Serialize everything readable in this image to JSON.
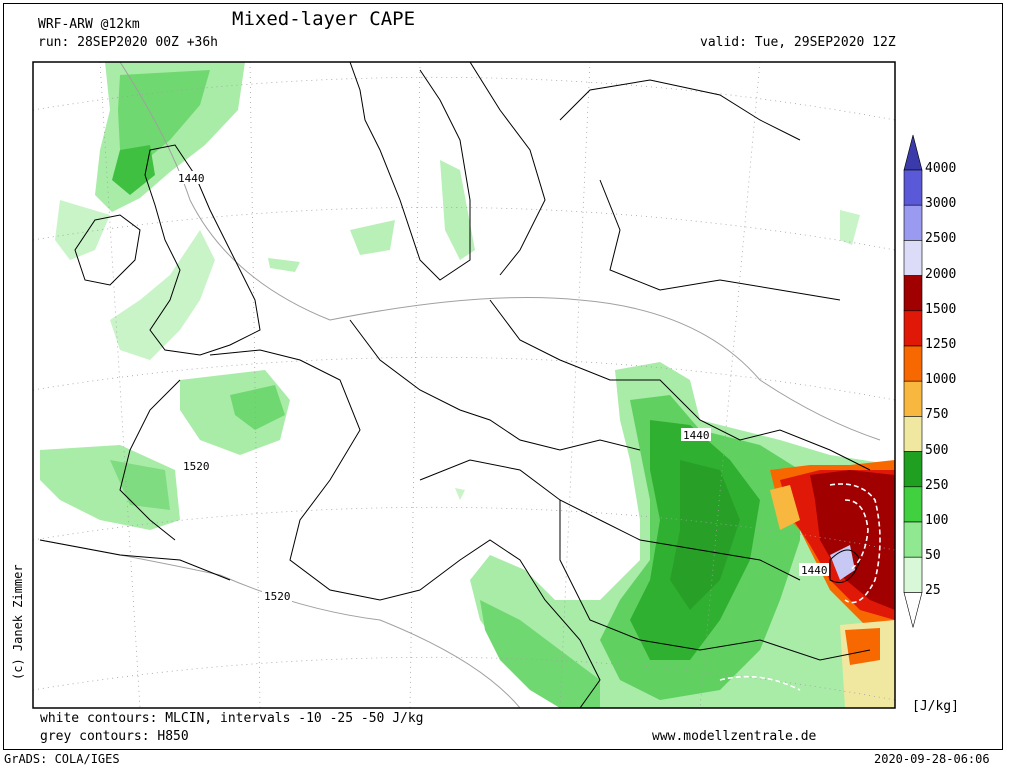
{
  "header": {
    "model": "WRF-ARW @12km",
    "title": "Mixed-layer CAPE",
    "run": "run: 28SEP2020 00Z +36h",
    "valid": "valid: Tue, 29SEP2020 12Z"
  },
  "map": {
    "contour_labels": [
      "1440",
      "1440",
      "1440",
      "1520",
      "1520"
    ],
    "credit": "(c) Janek Zimmer"
  },
  "legend": {
    "unit": "[J/kg]",
    "levels": [
      "4000",
      "3000",
      "2500",
      "2000",
      "1500",
      "1250",
      "1000",
      "750",
      "500",
      "250",
      "100",
      "50",
      "25"
    ],
    "colors": [
      "#3a3aaa",
      "#5a5ad8",
      "#9a9af0",
      "#dcdcf8",
      "#a00000",
      "#e01808",
      "#f86800",
      "#f8b840",
      "#f0e8a0",
      "#20a020",
      "#40d040",
      "#90e890",
      "#d8f8d8"
    ]
  },
  "footer": {
    "white_contours": "white contours: MLCIN, intervals -10 -25 -50 J/kg",
    "grey_contours": "grey contours: H850",
    "website": "www.modellzentrale.de",
    "grads": "GrADS: COLA/IGES",
    "timestamp": "2020-09-28-06:06"
  }
}
